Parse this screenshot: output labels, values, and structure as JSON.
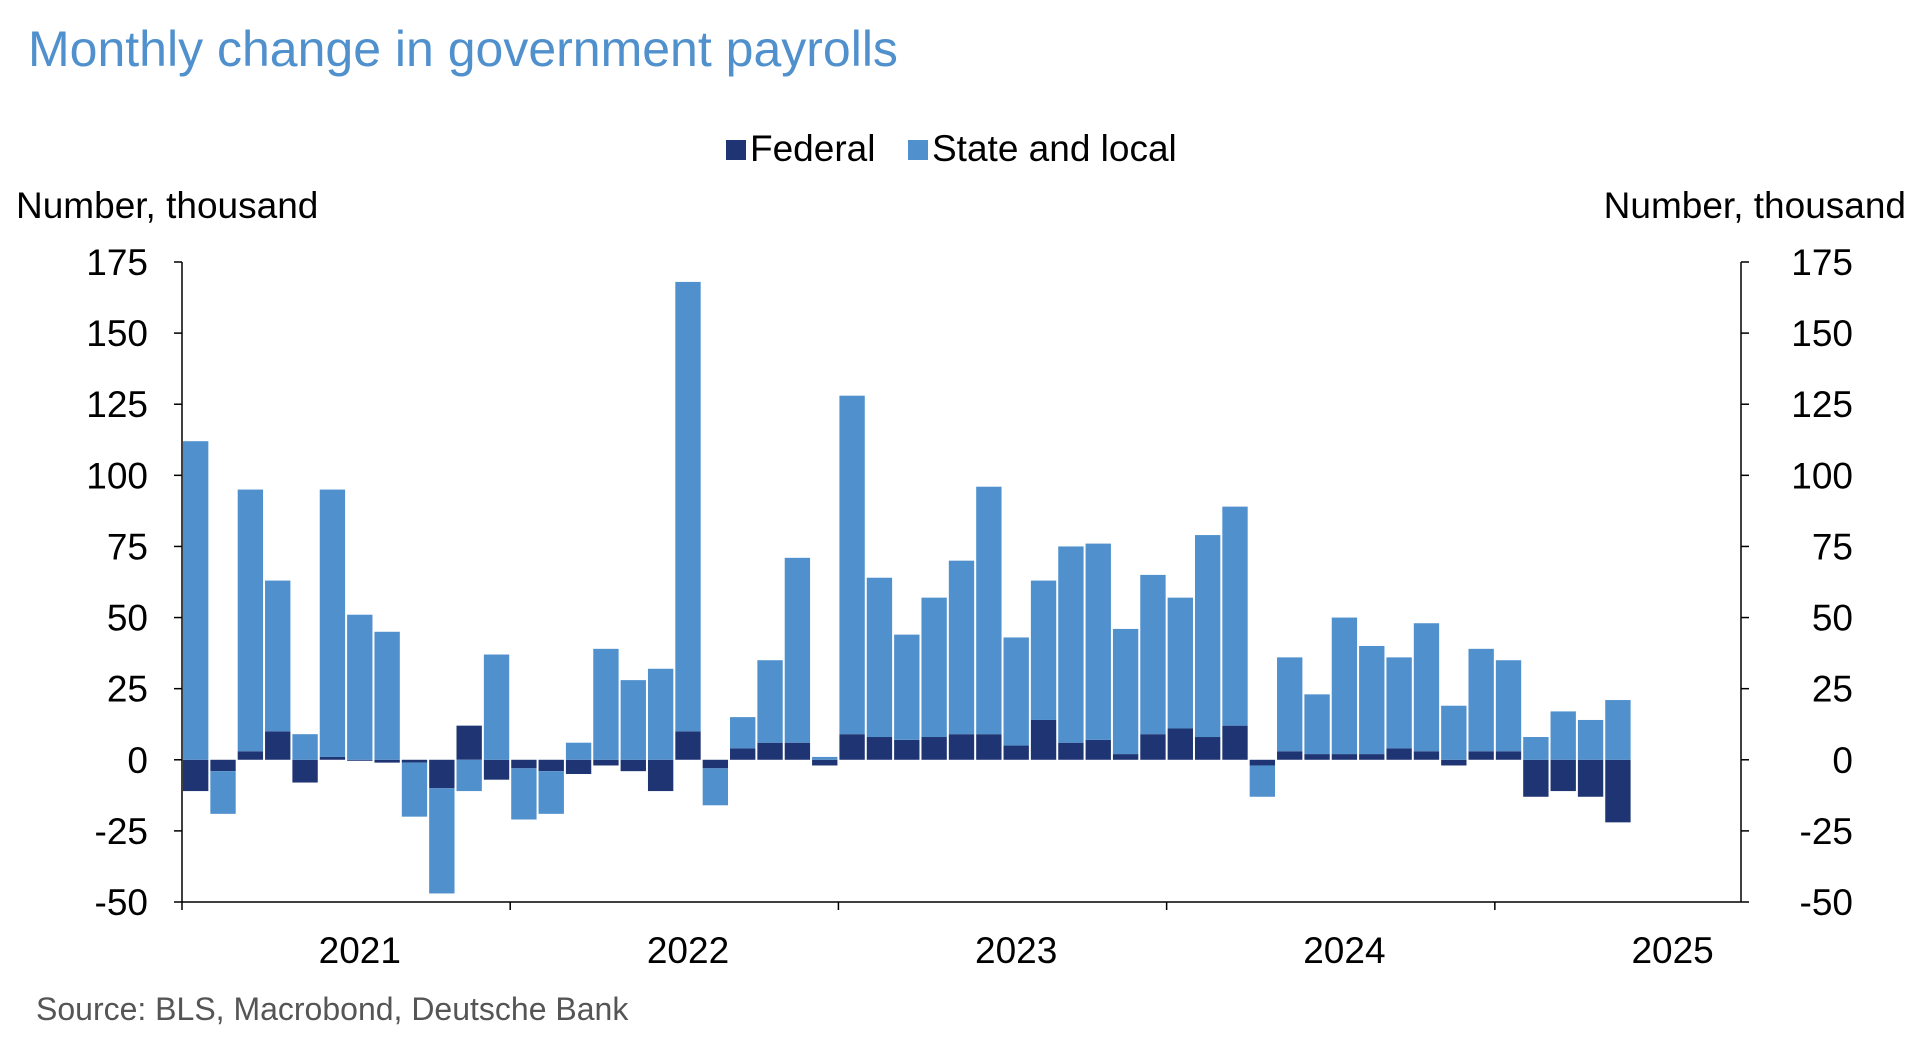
{
  "chart_data": {
    "type": "bar",
    "stacked": true,
    "title": "Monthly change in government payrolls",
    "y_label_left": "Number, thousand",
    "y_label_right": "Number, thousand",
    "ylim": [
      -50,
      175
    ],
    "y_ticks": [
      175,
      150,
      125,
      100,
      75,
      50,
      25,
      0,
      -25,
      -50
    ],
    "x_ticks": [
      "2021",
      "2022",
      "2023",
      "2024",
      "2025"
    ],
    "legend_position": "top-center",
    "source": "Source: BLS, Macrobond, Deutsche Bank",
    "colors": {
      "federal": "#1f3473",
      "state_local": "#4f90cd",
      "title": "#4f90cd",
      "axis": "#000000"
    },
    "categories": [
      "2021-01",
      "2021-02",
      "2021-03",
      "2021-04",
      "2021-05",
      "2021-06",
      "2021-07",
      "2021-08",
      "2021-09",
      "2021-10",
      "2021-11",
      "2021-12",
      "2022-01",
      "2022-02",
      "2022-03",
      "2022-04",
      "2022-05",
      "2022-06",
      "2022-07",
      "2022-08",
      "2022-09",
      "2022-10",
      "2022-11",
      "2022-12",
      "2023-01",
      "2023-02",
      "2023-03",
      "2023-04",
      "2023-05",
      "2023-06",
      "2023-07",
      "2023-08",
      "2023-09",
      "2023-10",
      "2023-11",
      "2023-12",
      "2024-01",
      "2024-02",
      "2024-03",
      "2024-04",
      "2024-05",
      "2024-06",
      "2024-07",
      "2024-08",
      "2024-09",
      "2024-10",
      "2024-11",
      "2024-12",
      "2025-01",
      "2025-02",
      "2025-03",
      "2025-04",
      "2025-05",
      "2025-06",
      "2025-07",
      "2025-08",
      "2025-09"
    ],
    "series": [
      {
        "name": "Federal",
        "values": [
          -11,
          -4,
          3,
          10,
          -8,
          1,
          0,
          -1,
          -1,
          -10,
          12,
          -7,
          -3,
          -4,
          -5,
          -2,
          -4,
          -11,
          10,
          -3,
          4,
          6,
          6,
          -2,
          9,
          8,
          7,
          8,
          9,
          9,
          5,
          14,
          6,
          7,
          2,
          9,
          11,
          8,
          12,
          -2,
          3,
          2,
          2,
          2,
          4,
          3,
          -2,
          3,
          3,
          -13,
          -11,
          -13,
          -22,
          null,
          null,
          null,
          null
        ]
      },
      {
        "name": "State and local",
        "values": [
          112,
          -15,
          92,
          53,
          9,
          94,
          51,
          45,
          -19,
          -37,
          -11,
          37,
          -18,
          -15,
          6,
          39,
          28,
          32,
          158,
          -13,
          11,
          29,
          65,
          1,
          119,
          56,
          37,
          49,
          61,
          87,
          38,
          49,
          69,
          69,
          44,
          56,
          46,
          71,
          77,
          -11,
          33,
          21,
          48,
          38,
          32,
          45,
          19,
          36,
          32,
          8,
          17,
          14,
          21,
          null,
          null,
          null,
          null
        ]
      }
    ]
  }
}
